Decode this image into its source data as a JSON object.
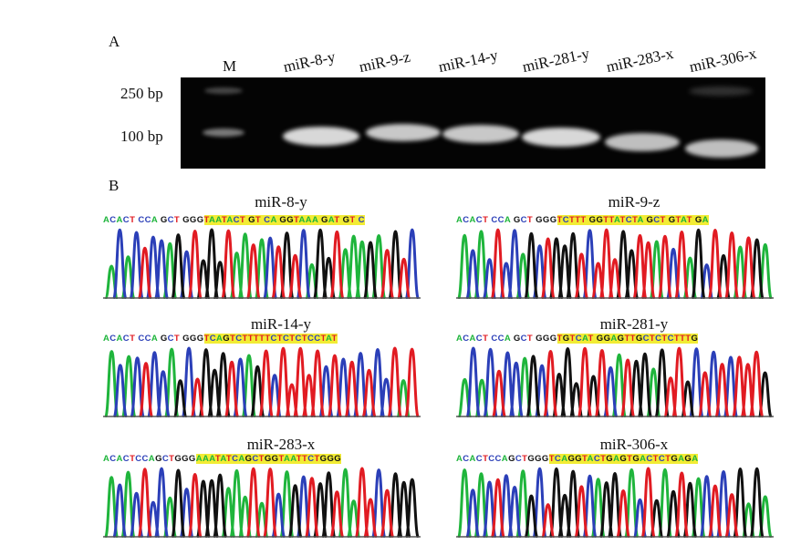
{
  "panel_a": {
    "letter": "A",
    "size_labels": [
      "250 bp",
      "100 bp"
    ],
    "lanes": [
      "M",
      "miR-8-y",
      "miR-9-z",
      "miR-14-y",
      "miR-281-y",
      "miR-283-x",
      "miR-306-x"
    ]
  },
  "panel_b": {
    "letter": "B",
    "colors": {
      "A": "#1fb53c",
      "C": "#2b3fb8",
      "G": "#111111",
      "T": "#e11b22",
      "highlight": "#f2ec34"
    },
    "traces": [
      {
        "title": "miR-8-y",
        "seq_pre": "ACACT CCA GCT GGG",
        "seq_hl": "TAATACT GT CA GGTAAA GAT GT C"
      },
      {
        "title": "miR-9-z",
        "seq_pre": "ACACT CCA GCT GGG",
        "seq_hl": "TCTTT GGTTATCTA GCT GTAT GA"
      },
      {
        "title": "miR-14-y",
        "seq_pre": "ACACT CCA GCT GGG",
        "seq_hl": "TCAGTCTTTTTCTCTCTCCTAT"
      },
      {
        "title": "miR-281-y",
        "seq_pre": "ACACT CCA GCT GGG",
        "seq_hl": "TGTCAT GGAGTTGCTCTCTTTG"
      },
      {
        "title": "miR-283-x",
        "seq_pre": "ACACTCCAGCTGGG",
        "seq_hl": "AAATATCAGCTGGTAATTCTGGG"
      },
      {
        "title": "miR-306-x",
        "seq_pre": "ACACTCCAGCTGGG",
        "seq_hl": "TCAGGTACTGAGTGACTCTGAGA"
      }
    ]
  }
}
